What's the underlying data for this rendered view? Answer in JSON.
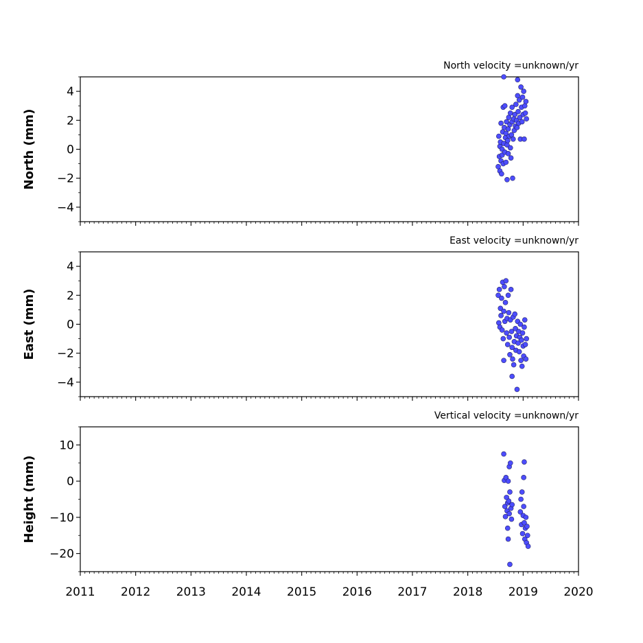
{
  "chart_data": [
    {
      "type": "scatter",
      "title": "North velocity =unknown/yr",
      "ylabel": "North (mm)",
      "xlim": [
        2011,
        2020
      ],
      "ylim": [
        -5,
        5
      ],
      "yticks": [
        -4,
        -2,
        0,
        2,
        4
      ],
      "marker_color": "#4d4dff",
      "points": [
        [
          2018.55,
          -1.2
        ],
        [
          2018.56,
          0.9
        ],
        [
          2018.57,
          -0.5
        ],
        [
          2018.58,
          0.2
        ],
        [
          2018.58,
          -1.5
        ],
        [
          2018.59,
          0.5
        ],
        [
          2018.6,
          -0.8
        ],
        [
          2018.6,
          1.8
        ],
        [
          2018.61,
          -1.7
        ],
        [
          2018.62,
          0.0
        ],
        [
          2018.62,
          -0.4
        ],
        [
          2018.63,
          1.2
        ],
        [
          2018.64,
          2.9
        ],
        [
          2018.64,
          -1.0
        ],
        [
          2018.65,
          0.4
        ],
        [
          2018.65,
          5.0
        ],
        [
          2018.66,
          1.5
        ],
        [
          2018.67,
          3.0
        ],
        [
          2018.67,
          -0.2
        ],
        [
          2018.68,
          0.8
        ],
        [
          2018.69,
          -0.9
        ],
        [
          2018.69,
          1.1
        ],
        [
          2018.7,
          1.9
        ],
        [
          2018.71,
          0.3
        ],
        [
          2018.71,
          -2.1
        ],
        [
          2018.72,
          0.6
        ],
        [
          2018.73,
          1.4
        ],
        [
          2018.73,
          -0.3
        ],
        [
          2018.74,
          2.2
        ],
        [
          2018.75,
          0.9
        ],
        [
          2018.76,
          1.7
        ],
        [
          2018.77,
          0.1
        ],
        [
          2018.77,
          2.5
        ],
        [
          2018.78,
          -0.6
        ],
        [
          2018.79,
          1.0
        ],
        [
          2018.8,
          1.9
        ],
        [
          2018.8,
          2.9
        ],
        [
          2018.81,
          -2.0
        ],
        [
          2018.82,
          0.7
        ],
        [
          2018.83,
          2.1
        ],
        [
          2018.84,
          1.3
        ],
        [
          2018.85,
          2.4
        ],
        [
          2018.86,
          1.6
        ],
        [
          2018.87,
          3.1
        ],
        [
          2018.88,
          2.0
        ],
        [
          2018.89,
          1.5
        ],
        [
          2018.9,
          3.7
        ],
        [
          2018.9,
          4.8
        ],
        [
          2018.91,
          2.6
        ],
        [
          2018.92,
          1.8
        ],
        [
          2018.93,
          3.4
        ],
        [
          2018.94,
          2.2
        ],
        [
          2018.95,
          0.7
        ],
        [
          2018.96,
          4.3
        ],
        [
          2018.97,
          2.9
        ],
        [
          2018.98,
          1.9
        ],
        [
          2018.99,
          3.6
        ],
        [
          2019.0,
          2.4
        ],
        [
          2019.01,
          4.0
        ],
        [
          2019.02,
          0.7
        ],
        [
          2019.03,
          3.0
        ],
        [
          2019.04,
          2.5
        ],
        [
          2019.05,
          3.3
        ],
        [
          2019.06,
          2.1
        ]
      ]
    },
    {
      "type": "scatter",
      "title": "East velocity =unknown/yr",
      "ylabel": "East (mm)",
      "xlim": [
        2011,
        2020
      ],
      "ylim": [
        -5,
        5
      ],
      "yticks": [
        -4,
        -2,
        0,
        2,
        4
      ],
      "marker_color": "#4d4dff",
      "points": [
        [
          2018.55,
          2.0
        ],
        [
          2018.56,
          0.1
        ],
        [
          2018.57,
          2.4
        ],
        [
          2018.58,
          -0.2
        ],
        [
          2018.59,
          1.1
        ],
        [
          2018.6,
          0.6
        ],
        [
          2018.61,
          1.8
        ],
        [
          2018.62,
          -0.4
        ],
        [
          2018.63,
          2.9
        ],
        [
          2018.64,
          -1.0
        ],
        [
          2018.65,
          0.9
        ],
        [
          2018.65,
          -2.5
        ],
        [
          2018.66,
          2.6
        ],
        [
          2018.67,
          0.2
        ],
        [
          2018.68,
          1.5
        ],
        [
          2018.69,
          3.0
        ],
        [
          2018.7,
          -0.6
        ],
        [
          2018.71,
          0.4
        ],
        [
          2018.72,
          -1.4
        ],
        [
          2018.73,
          2.0
        ],
        [
          2018.74,
          0.8
        ],
        [
          2018.75,
          -0.9
        ],
        [
          2018.76,
          -2.1
        ],
        [
          2018.77,
          0.3
        ],
        [
          2018.78,
          2.4
        ],
        [
          2018.79,
          -0.5
        ],
        [
          2018.8,
          -1.6
        ],
        [
          2018.8,
          -3.6
        ],
        [
          2018.81,
          -2.4
        ],
        [
          2018.82,
          0.5
        ],
        [
          2018.83,
          -2.8
        ],
        [
          2018.84,
          -1.2
        ],
        [
          2018.85,
          0.7
        ],
        [
          2018.86,
          -0.3
        ],
        [
          2018.87,
          -1.8
        ],
        [
          2018.88,
          -0.8
        ],
        [
          2018.89,
          -4.5
        ],
        [
          2018.9,
          0.2
        ],
        [
          2018.91,
          -1.3
        ],
        [
          2018.92,
          -0.5
        ],
        [
          2018.93,
          -1.9
        ],
        [
          2018.94,
          -0.9
        ],
        [
          2018.95,
          0.0
        ],
        [
          2018.96,
          -2.5
        ],
        [
          2018.97,
          -1.1
        ],
        [
          2018.98,
          -2.9
        ],
        [
          2018.99,
          -0.6
        ],
        [
          2019.0,
          -1.5
        ],
        [
          2019.01,
          -2.2
        ],
        [
          2019.02,
          -0.2
        ],
        [
          2019.03,
          0.3
        ],
        [
          2019.04,
          -1.4
        ],
        [
          2019.05,
          -2.4
        ],
        [
          2019.06,
          -1.0
        ]
      ]
    },
    {
      "type": "scatter",
      "title": "Vertical velocity =unknown/yr",
      "ylabel": "Height (mm)",
      "xlim": [
        2011,
        2020
      ],
      "ylim": [
        -25,
        15
      ],
      "yticks": [
        -20,
        -10,
        0,
        10
      ],
      "marker_color": "#4d4dff",
      "points": [
        [
          2018.65,
          7.5
        ],
        [
          2018.66,
          0.2
        ],
        [
          2018.67,
          -7.0
        ],
        [
          2018.68,
          -9.8
        ],
        [
          2018.69,
          1.0
        ],
        [
          2018.7,
          -4.5
        ],
        [
          2018.71,
          -8.2
        ],
        [
          2018.72,
          -6.0
        ],
        [
          2018.72,
          -13.0
        ],
        [
          2018.73,
          -16.0
        ],
        [
          2018.73,
          0.0
        ],
        [
          2018.74,
          -5.5
        ],
        [
          2018.75,
          4.0
        ],
        [
          2018.75,
          -9.0
        ],
        [
          2018.76,
          -23.0
        ],
        [
          2018.76,
          -3.0
        ],
        [
          2018.77,
          5.0
        ],
        [
          2018.78,
          -7.5
        ],
        [
          2018.79,
          -10.5
        ],
        [
          2018.8,
          -6.5
        ],
        [
          2018.95,
          -8.5
        ],
        [
          2018.96,
          -5.0
        ],
        [
          2018.97,
          -12.0
        ],
        [
          2018.98,
          -3.0
        ],
        [
          2018.99,
          -14.5
        ],
        [
          2019.0,
          -9.5
        ],
        [
          2019.01,
          -7.0
        ],
        [
          2019.01,
          1.0
        ],
        [
          2019.02,
          5.3
        ],
        [
          2019.02,
          -11.5
        ],
        [
          2019.03,
          -16.0
        ],
        [
          2019.04,
          -13.0
        ],
        [
          2019.05,
          -10.0
        ],
        [
          2019.06,
          -17.0
        ],
        [
          2019.07,
          -12.5
        ],
        [
          2019.08,
          -15.0
        ],
        [
          2019.09,
          -18.0
        ]
      ]
    }
  ],
  "x_ticks": [
    "2011",
    "2012",
    "2013",
    "2014",
    "2015",
    "2016",
    "2017",
    "2018",
    "2019",
    "2020"
  ]
}
